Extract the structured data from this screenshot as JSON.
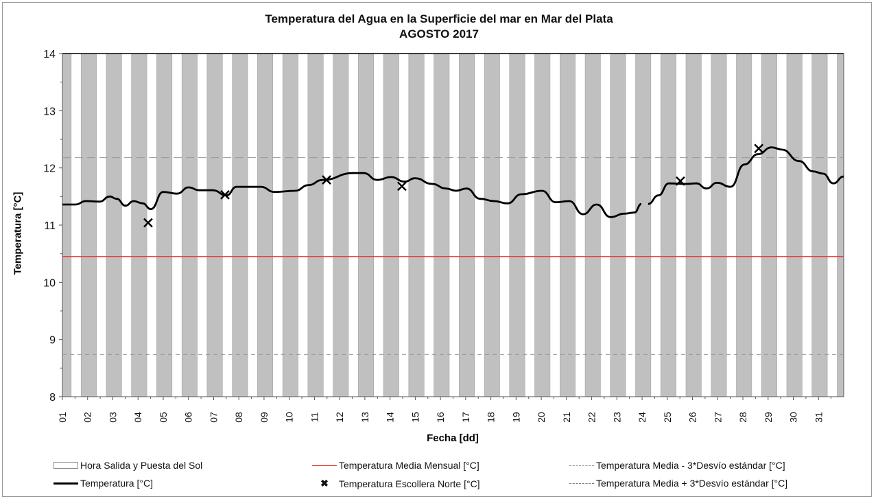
{
  "chart_data": {
    "type": "line",
    "title": "Temperatura del Agua en la Superficie del mar en Mar del Plata",
    "subtitle": "AGOSTO 2017",
    "xlabel": "Fecha [dd]",
    "ylabel": "Temperatura [°C]",
    "ylim": [
      8,
      14
    ],
    "yticks": [
      "8",
      "9",
      "10",
      "11",
      "12",
      "13",
      "14"
    ],
    "xticks": [
      "01",
      "02",
      "03",
      "04",
      "05",
      "06",
      "07",
      "08",
      "09",
      "10",
      "11",
      "12",
      "13",
      "14",
      "15",
      "16",
      "17",
      "18",
      "19",
      "20",
      "21",
      "22",
      "23",
      "24",
      "25",
      "26",
      "27",
      "28",
      "29",
      "30",
      "31"
    ],
    "xlim": [
      1,
      32
    ],
    "daylight": {
      "sunrise_fraction": 0.35,
      "sunset_fraction": 0.74
    },
    "mean": 10.45,
    "mean_minus_3sd": 8.74,
    "mean_plus_3sd": 12.18,
    "temperature_segments": [
      [
        [
          1.0,
          11.36
        ],
        [
          1.52,
          11.36
        ],
        [
          1.93,
          11.42
        ],
        [
          2.47,
          11.41
        ],
        [
          2.88,
          11.5
        ],
        [
          3.15,
          11.46
        ],
        [
          3.5,
          11.34
        ],
        [
          3.83,
          11.42
        ],
        [
          4.18,
          11.38
        ],
        [
          4.51,
          11.28
        ],
        [
          5.0,
          11.58
        ],
        [
          5.55,
          11.55
        ],
        [
          6.01,
          11.66
        ],
        [
          6.42,
          11.61
        ],
        [
          6.96,
          11.61
        ],
        [
          7.51,
          11.52
        ],
        [
          7.91,
          11.67
        ],
        [
          8.87,
          11.67
        ],
        [
          9.41,
          11.58
        ],
        [
          10.23,
          11.6
        ],
        [
          10.77,
          11.7
        ],
        [
          11.32,
          11.79
        ],
        [
          12.54,
          11.91
        ],
        [
          12.95,
          11.91
        ],
        [
          13.49,
          11.79
        ],
        [
          14.04,
          11.84
        ],
        [
          14.58,
          11.76
        ],
        [
          14.99,
          11.82
        ],
        [
          15.67,
          11.72
        ],
        [
          16.22,
          11.64
        ],
        [
          16.62,
          11.6
        ],
        [
          17.03,
          11.64
        ],
        [
          17.58,
          11.46
        ],
        [
          18.12,
          11.42
        ],
        [
          18.66,
          11.38
        ],
        [
          19.21,
          11.54
        ],
        [
          20.03,
          11.6
        ],
        [
          20.57,
          11.4
        ],
        [
          21.11,
          11.42
        ],
        [
          21.66,
          11.19
        ],
        [
          22.2,
          11.36
        ],
        [
          22.75,
          11.14
        ],
        [
          23.29,
          11.2
        ],
        [
          23.7,
          11.22
        ],
        [
          23.97,
          11.37
        ]
      ],
      [
        [
          24.24,
          11.37
        ],
        [
          24.65,
          11.52
        ],
        [
          25.06,
          11.73
        ],
        [
          25.74,
          11.72
        ],
        [
          26.15,
          11.73
        ],
        [
          26.56,
          11.64
        ],
        [
          26.97,
          11.74
        ],
        [
          27.51,
          11.67
        ],
        [
          28.06,
          12.06
        ],
        [
          28.6,
          12.24
        ],
        [
          29.14,
          12.36
        ],
        [
          29.55,
          12.32
        ],
        [
          30.23,
          12.12
        ],
        [
          30.78,
          11.94
        ],
        [
          31.18,
          11.9
        ],
        [
          31.59,
          11.73
        ],
        [
          32.0,
          11.85
        ]
      ]
    ],
    "escollera_norte": [
      [
        4.4,
        11.04
      ],
      [
        7.45,
        11.53
      ],
      [
        11.48,
        11.79
      ],
      [
        14.47,
        11.68
      ],
      [
        25.52,
        11.77
      ],
      [
        28.63,
        12.34
      ]
    ],
    "legend": [
      "Hora Salida y Puesta del Sol",
      "Temperatura Media Mensual [°C]",
      "Temperatura Media - 3*Desvío estándar [°C]",
      "Temperatura [°C]",
      "Temperatura Escollera Norte [°C]",
      "Temperatura Media + 3*Desvío estándar [°C]"
    ],
    "colors": {
      "night": "#c0c0c0",
      "mean": "#e83030",
      "sd": "#999999",
      "temp": "#000000"
    }
  }
}
